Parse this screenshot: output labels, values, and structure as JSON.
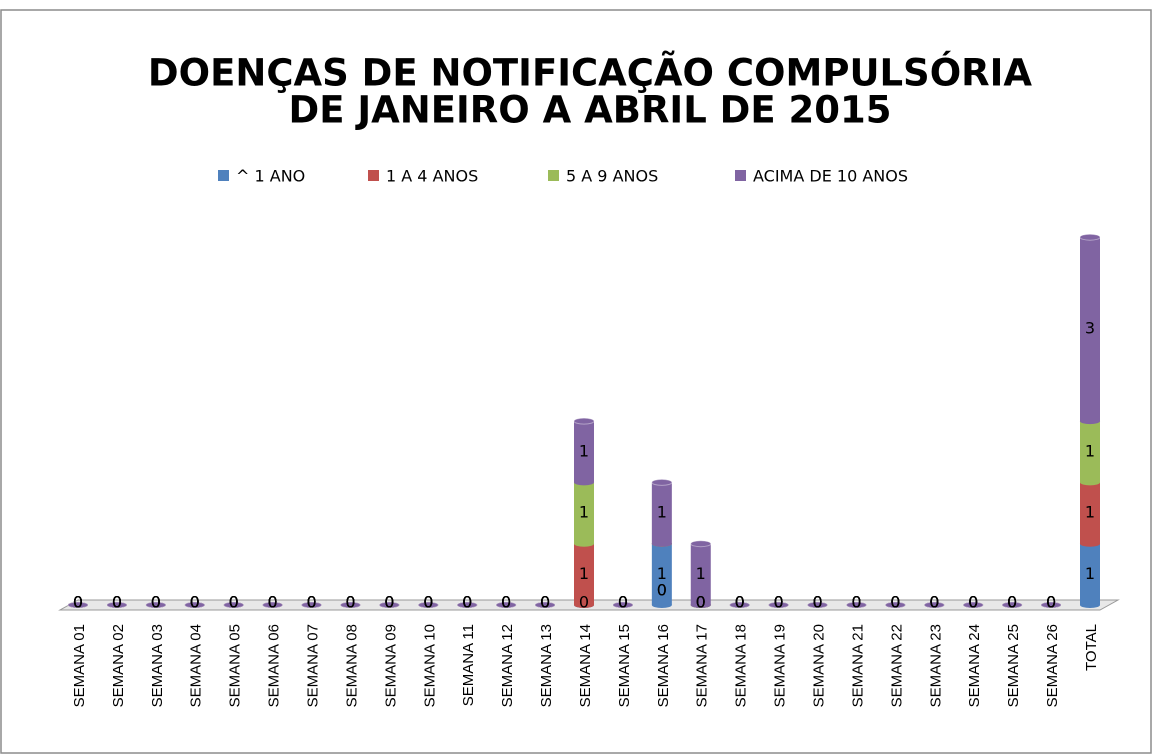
{
  "chart_data": {
    "type": "bar",
    "stacked": true,
    "title": [
      "DOENÇAS DE NOTIFICAÇÃO COMPULSÓRIA",
      "DE JANEIRO A ABRIL DE 2015"
    ],
    "categories": [
      "SEMANA 01",
      "SEMANA 02",
      "SEMANA 03",
      "SEMANA 04",
      "SEMANA 05",
      "SEMANA 06",
      "SEMANA 07",
      "SEMANA 08",
      "SEMANA 09",
      "SEMANA 10",
      "SEMANA 11",
      "SEMANA 12",
      "SEMANA 13",
      "SEMANA 14",
      "SEMANA 15",
      "SEMANA 16",
      "SEMANA 17",
      "SEMANA 18",
      "SEMANA 19",
      "SEMANA 20",
      "SEMANA 21",
      "SEMANA 22",
      "SEMANA 23",
      "SEMANA 24",
      "SEMANA 25",
      "SEMANA 26",
      "TOTAL"
    ],
    "series": [
      {
        "name": "^ 1 ANO",
        "color": "#4f81bd",
        "values": [
          0,
          0,
          0,
          0,
          0,
          0,
          0,
          0,
          0,
          0,
          0,
          0,
          0,
          0,
          0,
          1,
          0,
          0,
          0,
          0,
          0,
          0,
          0,
          0,
          0,
          0,
          1
        ]
      },
      {
        "name": "1 A 4 ANOS",
        "color": "#c0504d",
        "values": [
          0,
          0,
          0,
          0,
          0,
          0,
          0,
          0,
          0,
          0,
          0,
          0,
          0,
          1,
          0,
          0,
          0,
          0,
          0,
          0,
          0,
          0,
          0,
          0,
          0,
          0,
          1
        ]
      },
      {
        "name": "5 A 9 ANOS",
        "color": "#9bbb59",
        "values": [
          0,
          0,
          0,
          0,
          0,
          0,
          0,
          0,
          0,
          0,
          0,
          0,
          0,
          1,
          0,
          0,
          0,
          0,
          0,
          0,
          0,
          0,
          0,
          0,
          0,
          0,
          1
        ]
      },
      {
        "name": "ACIMA DE 10 ANOS",
        "color": "#8064a2",
        "values": [
          0,
          0,
          0,
          0,
          0,
          0,
          0,
          0,
          0,
          0,
          0,
          0,
          0,
          1,
          0,
          1,
          1,
          0,
          0,
          0,
          0,
          0,
          0,
          0,
          0,
          0,
          3
        ]
      }
    ],
    "legend": "top"
  }
}
